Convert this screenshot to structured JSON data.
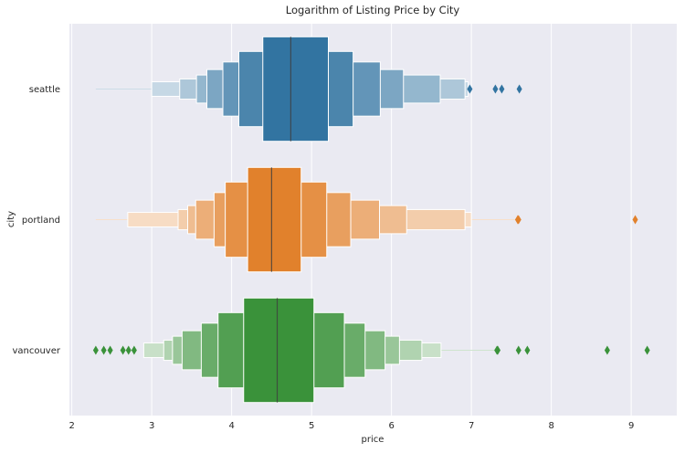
{
  "chart_data": {
    "type": "boxen",
    "title": "Logarithm of Listing Price by City",
    "xlabel": "price",
    "ylabel": "city",
    "xlim": [
      1.97,
      9.57
    ],
    "xticks": [
      2,
      3,
      4,
      5,
      6,
      7,
      8,
      9
    ],
    "grid": true,
    "orientation": "horizontal",
    "categories": [
      "seattle",
      "portland",
      "vancouver"
    ],
    "series": [
      {
        "name": "seattle",
        "color": "#3274a1",
        "median": 4.74,
        "min": 2.3,
        "max": 7.0,
        "boxes": [
          {
            "lo": 4.39,
            "hi": 5.21
          },
          {
            "lo": 4.09,
            "hi": 5.52
          },
          {
            "lo": 3.89,
            "hi": 5.86
          },
          {
            "lo": 3.69,
            "hi": 6.15
          },
          {
            "lo": 3.56,
            "hi": 6.61
          },
          {
            "lo": 3.35,
            "hi": 6.92
          },
          {
            "lo": 3.0,
            "hi": 6.96
          }
        ],
        "outliers": [
          6.98,
          7.3,
          7.38,
          7.6
        ]
      },
      {
        "name": "portland",
        "color": "#e1812c",
        "median": 4.5,
        "min": 2.3,
        "max": 7.55,
        "boxes": [
          {
            "lo": 4.2,
            "hi": 4.87
          },
          {
            "lo": 3.92,
            "hi": 5.19
          },
          {
            "lo": 3.78,
            "hi": 5.49
          },
          {
            "lo": 3.55,
            "hi": 5.85
          },
          {
            "lo": 3.45,
            "hi": 6.19
          },
          {
            "lo": 3.33,
            "hi": 6.92
          },
          {
            "lo": 2.7,
            "hi": 7.0
          }
        ],
        "outliers": [
          7.58,
          7.59,
          9.05
        ]
      },
      {
        "name": "vancouver",
        "color": "#3a923a",
        "median": 4.57,
        "min": 2.9,
        "max": 7.3,
        "boxes": [
          {
            "lo": 4.15,
            "hi": 5.03
          },
          {
            "lo": 3.83,
            "hi": 5.41
          },
          {
            "lo": 3.62,
            "hi": 5.67
          },
          {
            "lo": 3.38,
            "hi": 5.92
          },
          {
            "lo": 3.26,
            "hi": 6.1
          },
          {
            "lo": 3.15,
            "hi": 6.38
          },
          {
            "lo": 2.9,
            "hi": 6.62
          }
        ],
        "outliers": [
          2.3,
          2.4,
          2.48,
          2.64,
          2.71,
          2.78,
          7.32,
          7.33,
          7.59,
          7.7,
          8.7,
          9.2
        ]
      }
    ]
  }
}
